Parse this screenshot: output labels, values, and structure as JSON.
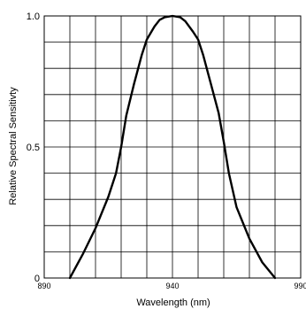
{
  "chart_data": {
    "type": "line",
    "title": "",
    "xlabel": "Wavelength  (nm)",
    "ylabel": "Relative Spectral Sensitivty",
    "xlim": [
      890,
      990
    ],
    "ylim": [
      0,
      1.0
    ],
    "x_tick_labels": [
      "890",
      "940",
      "990"
    ],
    "x_tick_values": [
      890,
      940,
      990
    ],
    "y_tick_labels": [
      "0",
      "0.5",
      "1.0"
    ],
    "y_tick_values": [
      0,
      0.5,
      1.0
    ],
    "grid": true,
    "grid_x_step": 10,
    "grid_y_step": 0.1,
    "line_color": "#000000",
    "series": [
      {
        "x": [
          900,
          905,
          910,
          915,
          918,
          920,
          922,
          925,
          928,
          930,
          933,
          935,
          937,
          940,
          943,
          945,
          948,
          950,
          952,
          955,
          958,
          960,
          962,
          965,
          970,
          975,
          980
        ],
        "values": [
          0.0,
          0.09,
          0.19,
          0.31,
          0.4,
          0.5,
          0.62,
          0.74,
          0.85,
          0.91,
          0.96,
          0.985,
          0.995,
          1.0,
          0.995,
          0.98,
          0.94,
          0.91,
          0.85,
          0.74,
          0.63,
          0.52,
          0.4,
          0.27,
          0.15,
          0.06,
          0.0
        ]
      }
    ]
  }
}
